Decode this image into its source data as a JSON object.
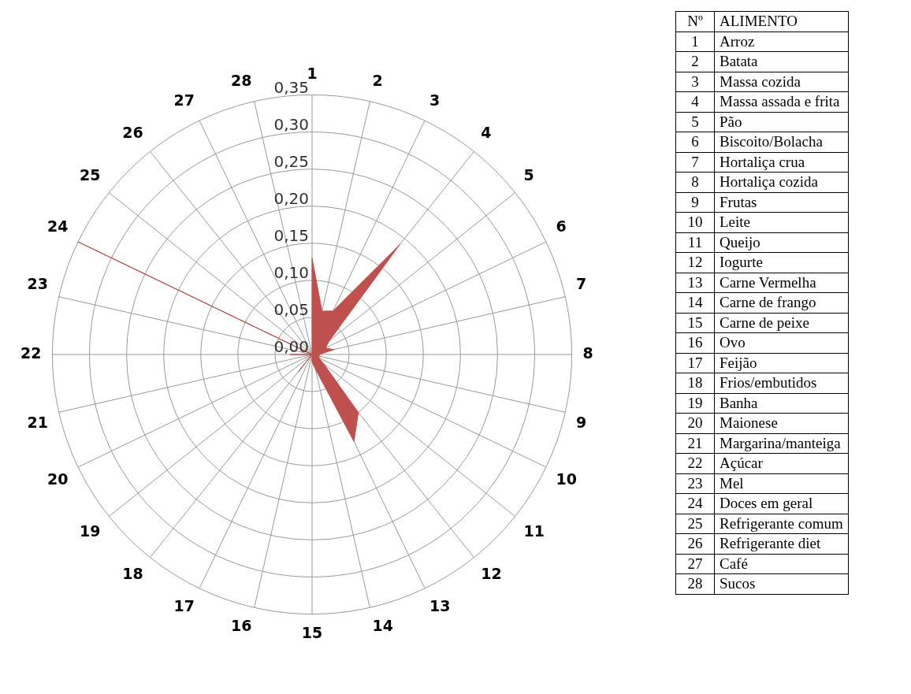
{
  "chart_data": {
    "type": "radar",
    "categories": [
      "1",
      "2",
      "3",
      "4",
      "5",
      "6",
      "7",
      "8",
      "9",
      "10",
      "11",
      "12",
      "13",
      "14",
      "15",
      "16",
      "17",
      "18",
      "19",
      "20",
      "21",
      "22",
      "23",
      "24",
      "25",
      "26",
      "27",
      "28"
    ],
    "series": [
      {
        "color": "#c0504d",
        "values": [
          0.13,
          0.06,
          0.065,
          0.19,
          0.03,
          0.02,
          0.03,
          0.01,
          0.01,
          0.01,
          0.02,
          0.1,
          0.13,
          0.02,
          0.01,
          0,
          0,
          0.03,
          0,
          0,
          0,
          0.03,
          0,
          0.35,
          0,
          0,
          0,
          0
        ]
      }
    ],
    "ylim": [
      0,
      0.35
    ],
    "yticks": [
      {
        "value": 0,
        "label": "0,00"
      },
      {
        "value": 0.05,
        "label": "0,05"
      },
      {
        "value": 0.1,
        "label": "0,10"
      },
      {
        "value": 0.15,
        "label": "0,15"
      },
      {
        "value": 0.2,
        "label": "0,20"
      },
      {
        "value": 0.25,
        "label": "0,25"
      },
      {
        "value": 0.3,
        "label": "0,30"
      },
      {
        "value": 0.35,
        "label": "0,35"
      }
    ],
    "grid": true,
    "legend": false,
    "marker": "none",
    "annotations": [
      "Nº",
      "ALIMENTO",
      "Arroz",
      "Batata",
      "Massa cozida",
      "Massa assada e frita",
      "Pão",
      "Biscoito/Bolacha",
      "Hortaliça crua",
      "Hortaliça cozida",
      "Frutas",
      "Leite",
      "Queijo",
      "Iogurte",
      "Carne Vermelha",
      "Carne de frango",
      "Carne de peixe",
      "Ovo",
      "Feijão",
      "Frios/embutidos",
      "Banha",
      "Maionese",
      "Margarina/manteiga",
      "Açúcar",
      "Mel",
      "Doces em geral",
      "Refrigerante comum",
      "Refrigerante diet",
      "Café",
      "Sucos"
    ]
  }
}
